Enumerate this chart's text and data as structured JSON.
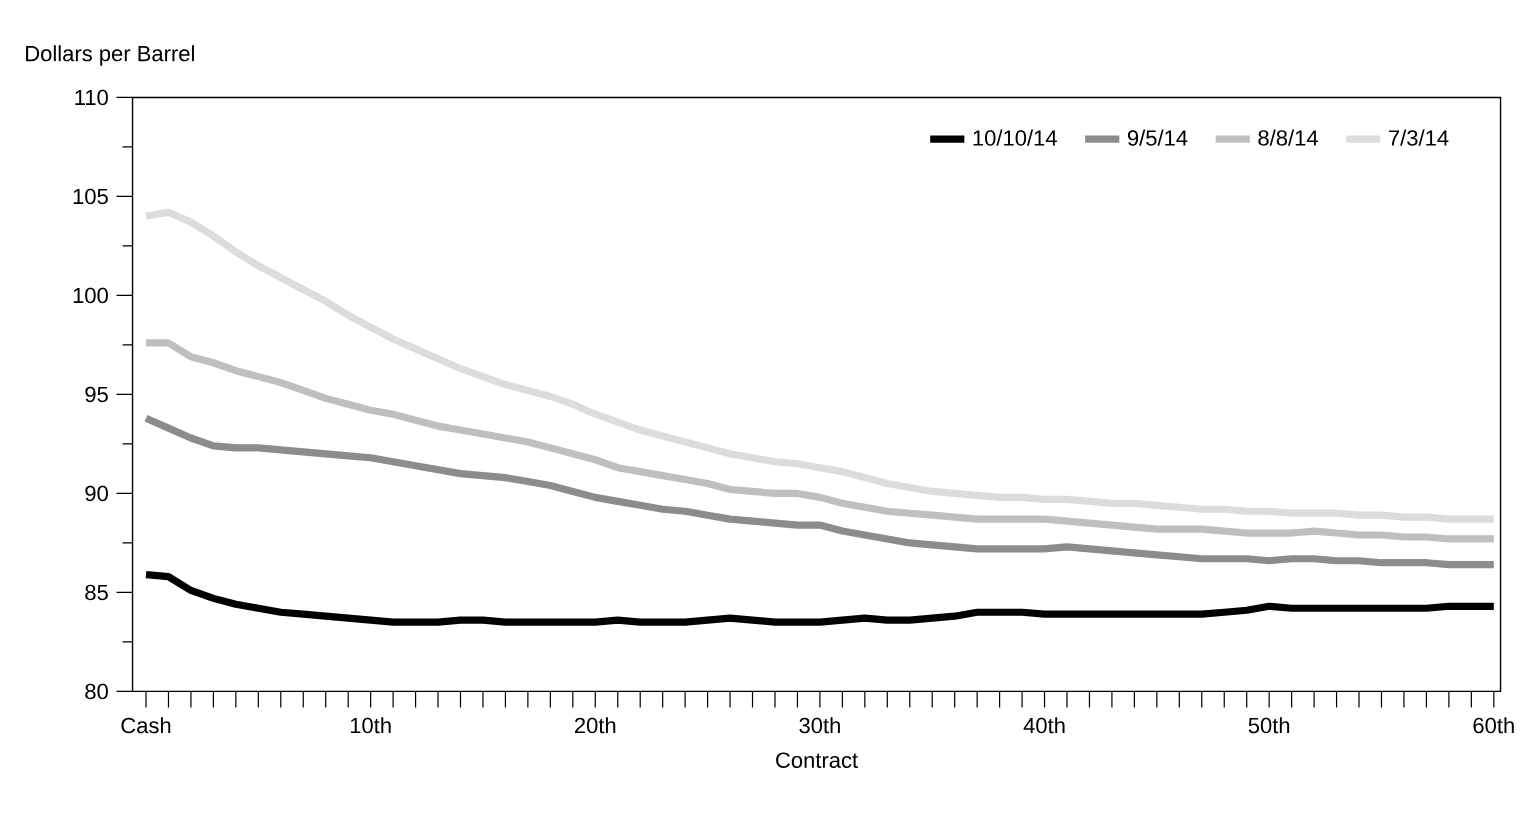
{
  "chart_data": {
    "type": "line",
    "ylabel": "Dollars per Barrel",
    "xlabel": "Contract",
    "categories": [
      "Cash",
      null,
      null,
      null,
      null,
      null,
      null,
      null,
      null,
      null,
      "10th",
      null,
      null,
      null,
      null,
      null,
      null,
      null,
      null,
      null,
      "20th",
      null,
      null,
      null,
      null,
      null,
      null,
      null,
      null,
      null,
      "30th",
      null,
      null,
      null,
      null,
      null,
      null,
      null,
      null,
      null,
      "40th",
      null,
      null,
      null,
      null,
      null,
      null,
      null,
      null,
      null,
      "50th",
      null,
      null,
      null,
      null,
      null,
      null,
      null,
      null,
      null,
      "60th"
    ],
    "ylim": [
      80,
      110
    ],
    "yticks": [
      80,
      85,
      90,
      95,
      100,
      105,
      110
    ],
    "grid": false,
    "legend": "top right",
    "marker": "none",
    "line_style": "solid",
    "series": [
      {
        "name": "10/10/14",
        "color": "#000000",
        "values": [
          85.9,
          85.8,
          85.1,
          84.7,
          84.4,
          84.2,
          84.0,
          83.9,
          83.8,
          83.7,
          83.6,
          83.5,
          83.5,
          83.5,
          83.6,
          83.6,
          83.5,
          83.5,
          83.5,
          83.5,
          83.5,
          83.6,
          83.5,
          83.5,
          83.5,
          83.6,
          83.7,
          83.6,
          83.5,
          83.5,
          83.5,
          83.6,
          83.7,
          83.6,
          83.6,
          83.7,
          83.8,
          84.0,
          84.0,
          84.0,
          83.9,
          83.9,
          83.9,
          83.9,
          83.9,
          83.9,
          83.9,
          83.9,
          84.0,
          84.1,
          84.3,
          84.2,
          84.2,
          84.2,
          84.2,
          84.2,
          84.2,
          84.2,
          84.3,
          84.3,
          84.3
        ]
      },
      {
        "name": "9/5/14",
        "color": "#8c8c8c",
        "values": [
          93.8,
          93.3,
          92.8,
          92.4,
          92.3,
          92.3,
          92.2,
          92.1,
          92.0,
          91.9,
          91.8,
          91.6,
          91.4,
          91.2,
          91.0,
          90.9,
          90.8,
          90.6,
          90.4,
          90.1,
          89.8,
          89.6,
          89.4,
          89.2,
          89.1,
          88.9,
          88.7,
          88.6,
          88.5,
          88.4,
          88.4,
          88.1,
          87.9,
          87.7,
          87.5,
          87.4,
          87.3,
          87.2,
          87.2,
          87.2,
          87.2,
          87.3,
          87.2,
          87.1,
          87.0,
          86.9,
          86.8,
          86.7,
          86.7,
          86.7,
          86.6,
          86.7,
          86.7,
          86.6,
          86.6,
          86.5,
          86.5,
          86.5,
          86.4,
          86.4,
          86.4
        ]
      },
      {
        "name": "8/8/14",
        "color": "#bfbfbf",
        "values": [
          97.6,
          97.6,
          96.9,
          96.6,
          96.2,
          95.9,
          95.6,
          95.2,
          94.8,
          94.5,
          94.2,
          94.0,
          93.7,
          93.4,
          93.2,
          93.0,
          92.8,
          92.6,
          92.3,
          92.0,
          91.7,
          91.3,
          91.1,
          90.9,
          90.7,
          90.5,
          90.2,
          90.1,
          90.0,
          90.0,
          89.8,
          89.5,
          89.3,
          89.1,
          89.0,
          88.9,
          88.8,
          88.7,
          88.7,
          88.7,
          88.7,
          88.6,
          88.5,
          88.4,
          88.3,
          88.2,
          88.2,
          88.2,
          88.1,
          88.0,
          88.0,
          88.0,
          88.1,
          88.0,
          87.9,
          87.9,
          87.8,
          87.8,
          87.7,
          87.7,
          87.7
        ]
      },
      {
        "name": "7/3/14",
        "color": "#dcdcdc",
        "values": [
          104.0,
          104.2,
          103.7,
          103.0,
          102.2,
          101.5,
          100.9,
          100.3,
          99.7,
          99.0,
          98.4,
          97.8,
          97.3,
          96.8,
          96.3,
          95.9,
          95.5,
          95.2,
          94.9,
          94.5,
          94.0,
          93.6,
          93.2,
          92.9,
          92.6,
          92.3,
          92.0,
          91.8,
          91.6,
          91.5,
          91.3,
          91.1,
          90.8,
          90.5,
          90.3,
          90.1,
          90.0,
          89.9,
          89.8,
          89.8,
          89.7,
          89.7,
          89.6,
          89.5,
          89.5,
          89.4,
          89.3,
          89.2,
          89.2,
          89.1,
          89.1,
          89.0,
          89.0,
          89.0,
          88.9,
          88.9,
          88.8,
          88.8,
          88.7,
          88.7,
          88.7
        ]
      }
    ]
  }
}
